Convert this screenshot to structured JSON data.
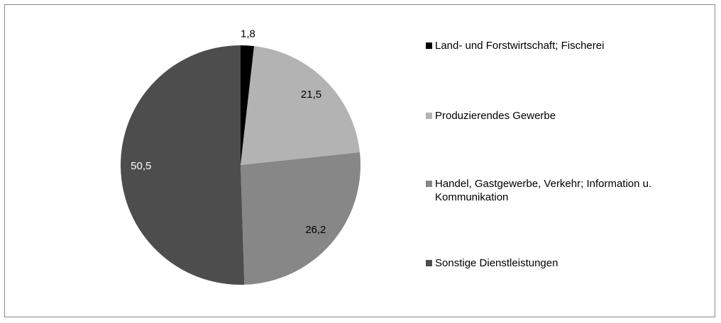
{
  "chart_data": {
    "type": "pie",
    "categories": [
      "Land- und Forstwirtschaft; Fischerei",
      "Produzierendes Gewerbe",
      "Handel, Gastgewerbe, Verkehr; Information u. Kommunikation",
      "Sonstige Dienstleistungen"
    ],
    "values": [
      1.8,
      21.5,
      26.2,
      50.5
    ],
    "value_labels": [
      "1,8",
      "21,5",
      "26,2",
      "50,5"
    ],
    "colors": [
      "#000000",
      "#b3b3b3",
      "#878787",
      "#4d4d4d"
    ],
    "legend": "right"
  }
}
